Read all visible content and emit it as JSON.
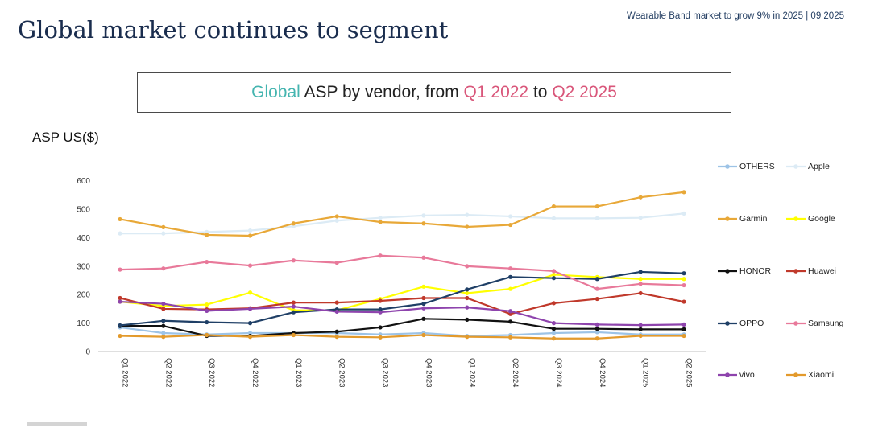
{
  "header": {
    "top_note": "Wearable Band market to grow 9% in 2025 | 09 2025",
    "title": "Global market continues to segment"
  },
  "chart_title": {
    "parts": [
      {
        "text": "Global",
        "color": "#45b5b0"
      },
      {
        "text": " ASP by vendor, from ",
        "color": "#222222"
      },
      {
        "text": "Q1 2022",
        "color": "#d9567a"
      },
      {
        "text": " to ",
        "color": "#222222"
      },
      {
        "text": "Q2 2025",
        "color": "#d9567a"
      }
    ]
  },
  "chart_data": {
    "type": "line",
    "title": "Global ASP by vendor, from Q1 2022 to Q2 2025",
    "ylabel": "ASP US($)",
    "xlabel": "",
    "ylim": [
      0,
      650
    ],
    "yticks": [
      0,
      100,
      200,
      300,
      400,
      500,
      600
    ],
    "grid": false,
    "legend_position": "right",
    "categories": [
      "Q1 2022",
      "Q2 2022",
      "Q3 2022",
      "Q4 2022",
      "Q1 2023",
      "Q2 2023",
      "Q3 2023",
      "Q4 2023",
      "Q1 2024",
      "Q2 2024",
      "Q3 2024",
      "Q4 2024",
      "Q1 2025",
      "Q2 2025"
    ],
    "series": [
      {
        "name": "OTHERS",
        "color": "#9dc3e6",
        "values": [
          85,
          65,
          60,
          65,
          65,
          65,
          60,
          65,
          55,
          58,
          65,
          68,
          60,
          60
        ]
      },
      {
        "name": "Apple",
        "color": "#dcebf5",
        "values": [
          415,
          415,
          420,
          425,
          440,
          460,
          470,
          478,
          480,
          475,
          468,
          468,
          470,
          485
        ]
      },
      {
        "name": "Garmin",
        "color": "#e8a838",
        "values": [
          465,
          437,
          410,
          407,
          450,
          475,
          455,
          450,
          438,
          445,
          510,
          510,
          542,
          560
        ]
      },
      {
        "name": "Google",
        "color": "#ffff00",
        "values": [
          175,
          160,
          165,
          207,
          145,
          145,
          185,
          228,
          205,
          220,
          270,
          262,
          255,
          255
        ]
      },
      {
        "name": "HONOR",
        "color": "#111111",
        "values": [
          90,
          90,
          55,
          55,
          65,
          70,
          85,
          115,
          112,
          105,
          80,
          80,
          78,
          78
        ]
      },
      {
        "name": "Huawei",
        "color": "#c0392b",
        "values": [
          188,
          150,
          148,
          152,
          172,
          172,
          178,
          188,
          188,
          132,
          170,
          185,
          205,
          175
        ]
      },
      {
        "name": "OPPO",
        "color": "#1f3f66",
        "values": [
          92,
          108,
          103,
          100,
          138,
          148,
          148,
          168,
          218,
          262,
          258,
          255,
          280,
          275
        ]
      },
      {
        "name": "Samsung",
        "color": "#e8799a",
        "values": [
          288,
          292,
          315,
          302,
          320,
          312,
          337,
          330,
          300,
          292,
          283,
          220,
          238,
          233
        ]
      },
      {
        "name": "vivo",
        "color": "#8e44ad",
        "values": [
          175,
          168,
          143,
          150,
          158,
          140,
          138,
          152,
          155,
          142,
          100,
          95,
          93,
          95
        ]
      },
      {
        "name": "Xiaomi",
        "color": "#e39a2c",
        "values": [
          55,
          52,
          58,
          52,
          58,
          52,
          50,
          58,
          52,
          50,
          46,
          46,
          55,
          55
        ]
      }
    ]
  }
}
